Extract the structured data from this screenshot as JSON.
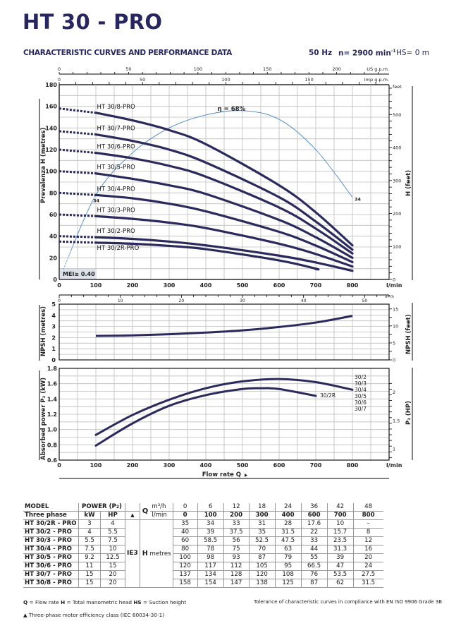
{
  "header": {
    "title": "HT 30 - PRO",
    "subtitle": "CHARACTERISTIC CURVES AND PERFORMANCE DATA",
    "frequency": "50 Hz",
    "speed": "n= 2900 min",
    "speed_sup": "-1",
    "suction": "HS= 0 m"
  },
  "colors": {
    "curve": "#2b2a5c",
    "efficiency": "#4a86c0",
    "grid": "#bdbdbd",
    "title": "#27275e"
  },
  "chart_data": [
    {
      "type": "line",
      "name": "head",
      "xlabel": "l/min",
      "ylabel": "Prevalenza H (metres)",
      "ylabel_right": "H (feet)",
      "right_unit": "feet",
      "xlim": [
        0,
        900
      ],
      "ylim": [
        0,
        180
      ],
      "x_ticks": [
        "0",
        "100",
        "200",
        "300",
        "400",
        "500",
        "600",
        "700",
        "800"
      ],
      "y_ticks": [
        "0",
        "20",
        "40",
        "60",
        "80",
        "100",
        "120",
        "140",
        "160",
        "180"
      ],
      "right_ticks": [
        "0",
        "100",
        "200",
        "300",
        "400",
        "500"
      ],
      "us_gpm_ticks": [
        "0",
        "50",
        "100",
        "150",
        "200"
      ],
      "us_gpm_label": "US g.p.m.",
      "imp_gpm_ticks": [
        "0",
        "50",
        "100",
        "150"
      ],
      "imp_gpm_label": "Imp g.p.m.",
      "x": [
        100,
        200,
        300,
        400,
        600,
        700,
        800
      ],
      "series": [
        {
          "name": "HT 30/8-PRO",
          "shutoff": 158,
          "values": [
            154,
            147,
            138,
            125,
            87,
            62,
            31.5
          ]
        },
        {
          "name": "HT 30/7-PRO",
          "shutoff": 137,
          "values": [
            134,
            128,
            120,
            108,
            76,
            53.5,
            27.5
          ]
        },
        {
          "name": "HT 30/6-PRO",
          "shutoff": 120,
          "values": [
            117,
            112,
            105,
            95,
            66.5,
            47,
            24
          ]
        },
        {
          "name": "HT 30/5-PRO",
          "shutoff": 100,
          "values": [
            98,
            93,
            87,
            79,
            55,
            39,
            20
          ]
        },
        {
          "name": "HT 30/4-PRO",
          "shutoff": 80,
          "values": [
            78,
            75,
            70,
            63,
            44,
            31.3,
            16
          ]
        },
        {
          "name": "HT 30/3-PRO",
          "shutoff": 60,
          "values": [
            58.5,
            56,
            52.5,
            47.5,
            33,
            23.5,
            12
          ]
        },
        {
          "name": "HT 30/2-PRO",
          "shutoff": 40,
          "values": [
            39,
            37.5,
            35,
            31.5,
            22,
            15.7,
            8
          ]
        },
        {
          "name": "HT 30/2R-PRO",
          "shutoff": 35,
          "values": [
            34,
            33,
            31,
            28,
            17.6,
            10,
            null
          ]
        }
      ],
      "efficiency_label": "η = 68%",
      "efficiency_curve": {
        "x": [
          10,
          100,
          200,
          300,
          400,
          500,
          600,
          700,
          800
        ],
        "y": [
          8,
          78,
          117,
          140,
          152,
          156,
          148,
          120,
          76
        ]
      },
      "efficiency_end_label": "34",
      "efficiency_start_label": "34",
      "mei_label": "MEI≥ 0.40"
    },
    {
      "type": "line",
      "name": "npsh",
      "ylabel": "NPSH (metres)",
      "ylabel_right": "NPSH (feet)",
      "xlabel": "m³/h",
      "xlim": [
        0,
        54
      ],
      "ylim": [
        0,
        5
      ],
      "x_ticks": [
        "0",
        "10",
        "20",
        "30",
        "40",
        "50"
      ],
      "y_ticks": [
        "0",
        "1",
        "2",
        "3",
        "4",
        "5"
      ],
      "right_ticks": [
        "0",
        "5",
        "10",
        "15"
      ],
      "x": [
        6,
        12,
        18,
        24,
        30,
        36,
        42,
        48
      ],
      "values": [
        2.15,
        2.2,
        2.3,
        2.45,
        2.65,
        2.95,
        3.35,
        3.95
      ]
    },
    {
      "type": "line",
      "name": "power",
      "ylabel": "Absorbed power P₂ (kW)",
      "ylabel_right": "P₂ (HP)",
      "xlabel": "Flow rate Q",
      "x_unit": "l/min",
      "xlim": [
        0,
        900
      ],
      "ylim": [
        0.6,
        1.8
      ],
      "x_ticks": [
        "0",
        "100",
        "200",
        "300",
        "400",
        "500",
        "600",
        "700",
        "800"
      ],
      "y_ticks": [
        "0.6",
        "0.8",
        "1.0",
        "1.2",
        "1.4",
        "1.6",
        "1.8"
      ],
      "right_ticks": [
        "1",
        "1.5",
        "2"
      ],
      "series": [
        {
          "name": "30/2 30/3 30/4 30/5 30/6 30/7",
          "labels": [
            "30/2",
            "30/3",
            "30/4",
            "30/5",
            "30/6",
            "30/7"
          ],
          "x": [
            100,
            200,
            300,
            400,
            500,
            600,
            700,
            800
          ],
          "values": [
            0.93,
            1.19,
            1.39,
            1.54,
            1.63,
            1.66,
            1.62,
            1.52
          ]
        },
        {
          "name": "30/2R",
          "labels": [
            "30/2R"
          ],
          "x": [
            100,
            200,
            300,
            400,
            500,
            550,
            600,
            700
          ],
          "values": [
            0.79,
            1.08,
            1.31,
            1.45,
            1.53,
            1.54,
            1.53,
            1.44
          ]
        }
      ]
    }
  ],
  "table": {
    "h_model": "MODEL",
    "h_phase": "Three phase",
    "h_power": "POWER (P",
    "h_power_sub": "2",
    "h_power_end": ")",
    "h_kw": "kW",
    "h_hp": "HP",
    "h_tri": "▲",
    "h_q": "Q",
    "h_m3h": "m³/h",
    "h_lmin": "l/min",
    "m3h": [
      "0",
      "6",
      "12",
      "18",
      "24",
      "36",
      "42",
      "48"
    ],
    "lmin": [
      "0",
      "100",
      "200",
      "300",
      "400",
      "600",
      "700",
      "800"
    ],
    "ie3": "IE3",
    "h_h": "H",
    "h_metres": "metres",
    "rows": [
      {
        "model": "HT 30/2R - PRO",
        "kw": "3",
        "hp": "4",
        "h": [
          "35",
          "34",
          "33",
          "31",
          "28",
          "17.6",
          "10",
          "–"
        ]
      },
      {
        "model": "HT 30/2 - PRO",
        "kw": "4",
        "hp": "5.5",
        "h": [
          "40",
          "39",
          "37.5",
          "35",
          "31.5",
          "22",
          "15.7",
          "8"
        ]
      },
      {
        "model": "HT 30/3 - PRO",
        "kw": "5.5",
        "hp": "7.5",
        "h": [
          "60",
          "58.5",
          "56",
          "52.5",
          "47.5",
          "33",
          "23.5",
          "12"
        ]
      },
      {
        "model": "HT 30/4 - PRO",
        "kw": "7.5",
        "hp": "10",
        "h": [
          "80",
          "78",
          "75",
          "70",
          "63",
          "44",
          "31.3",
          "16"
        ]
      },
      {
        "model": "HT 30/5 - PRO",
        "kw": "9.2",
        "hp": "12.5",
        "h": [
          "100",
          "98",
          "93",
          "87",
          "79",
          "55",
          "39",
          "20"
        ]
      },
      {
        "model": "HT 30/6 - PRO",
        "kw": "11",
        "hp": "15",
        "h": [
          "120",
          "117",
          "112",
          "105",
          "95",
          "66.5",
          "47",
          "24"
        ]
      },
      {
        "model": "HT 30/7 - PRO",
        "kw": "15",
        "hp": "20",
        "h": [
          "137",
          "134",
          "128",
          "120",
          "108",
          "76",
          "53.5",
          "27.5"
        ]
      },
      {
        "model": "HT 30/8 - PRO",
        "kw": "15",
        "hp": "20",
        "h": [
          "158",
          "154",
          "147",
          "138",
          "125",
          "87",
          "62",
          "31.5"
        ]
      }
    ]
  },
  "footer": {
    "legend_q": "Q",
    "legend_q_text": " = Flow rate  ",
    "legend_h": "H",
    "legend_h_text": " = Total manometric head  ",
    "legend_hs": "HS",
    "legend_hs_text": " = Suction height",
    "tolerance": "Tolerance of characteristic curves in compliance with EN ISO 9906 Grade 3B",
    "efficiency_note": "▲  Three-phase motor efficiency class (IEC 60034-30-1)"
  }
}
